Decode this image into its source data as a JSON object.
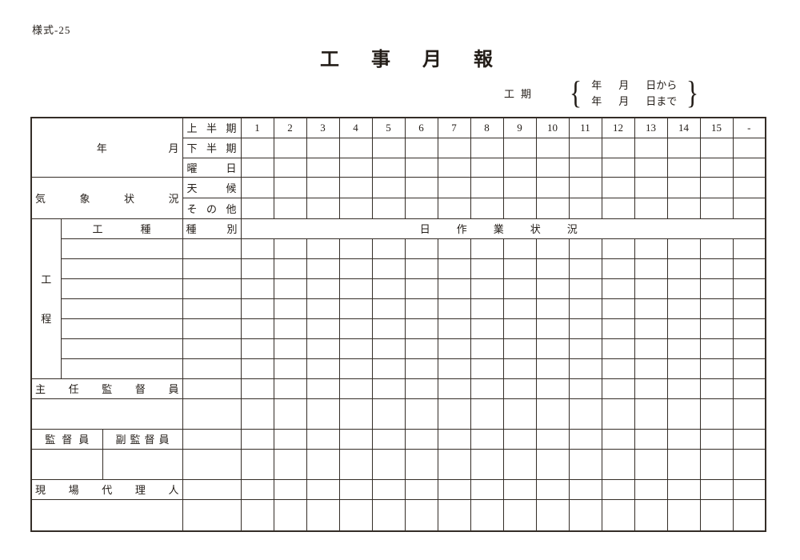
{
  "page": {
    "form_number": "様式-25",
    "title": "工事月報"
  },
  "period": {
    "label": "工期",
    "lines": [
      {
        "year": "年",
        "month": "月",
        "day": "日から"
      },
      {
        "year": "年",
        "month": "月",
        "day": "日まで"
      }
    ]
  },
  "table": {
    "year_label": "年",
    "month_label": "月",
    "day_headers": [
      "1",
      "2",
      "3",
      "4",
      "5",
      "6",
      "7",
      "8",
      "9",
      "10",
      "11",
      "12",
      "13",
      "14",
      "15",
      "-"
    ],
    "labels": {
      "first_half": "上半期",
      "second_half": "下半期",
      "weekday": "曜日",
      "weather_section": "気象状況",
      "weather": "天候",
      "other": "その他",
      "process": "工程",
      "work_type": "工種",
      "category": "種別",
      "daily_status": "日作業状況",
      "chief_supervisor": "主任監督員",
      "supervisor": "監督員",
      "deputy_supervisor": "副監督員",
      "site_agent": "現場代理人"
    }
  },
  "colors": {
    "line": "#342d27",
    "text": "#231d18",
    "background": "#ffffff"
  }
}
